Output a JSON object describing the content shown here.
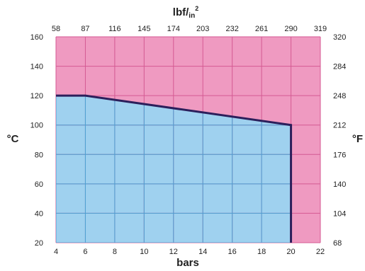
{
  "chart_data": {
    "type": "area",
    "x_bottom": {
      "label": "bars",
      "ticks": [
        "4",
        "6",
        "8",
        "10",
        "12",
        "14",
        "16",
        "18",
        "20",
        "22"
      ],
      "range": [
        4,
        22
      ]
    },
    "x_top": {
      "label_main": "lbf/",
      "label_sub": "in",
      "label_sup": "2",
      "ticks": [
        "58",
        "87",
        "116",
        "145",
        "174",
        "203",
        "232",
        "261",
        "290",
        "319"
      ]
    },
    "y_left": {
      "label": "°C",
      "ticks": [
        "160",
        "140",
        "120",
        "100",
        "80",
        "60",
        "40",
        "20"
      ],
      "range": [
        20,
        160
      ]
    },
    "y_right": {
      "label": "°F",
      "ticks": [
        "320",
        "284",
        "248",
        "212",
        "176",
        "140",
        "104",
        "68"
      ]
    },
    "series": [
      {
        "points": [
          {
            "x": 4,
            "y": 120
          },
          {
            "x": 6,
            "y": 120
          },
          {
            "x": 20,
            "y": 100
          },
          {
            "x": 20,
            "y": 20
          }
        ]
      }
    ],
    "grid": true,
    "colors": {
      "allowed_region": "#9fd1ef",
      "outside_region": "#ef9ac1",
      "grid_line_blue": "#4aa5d6",
      "grid_line_pink": "#d45a93",
      "boundary_line": "#2c1f5b"
    }
  }
}
